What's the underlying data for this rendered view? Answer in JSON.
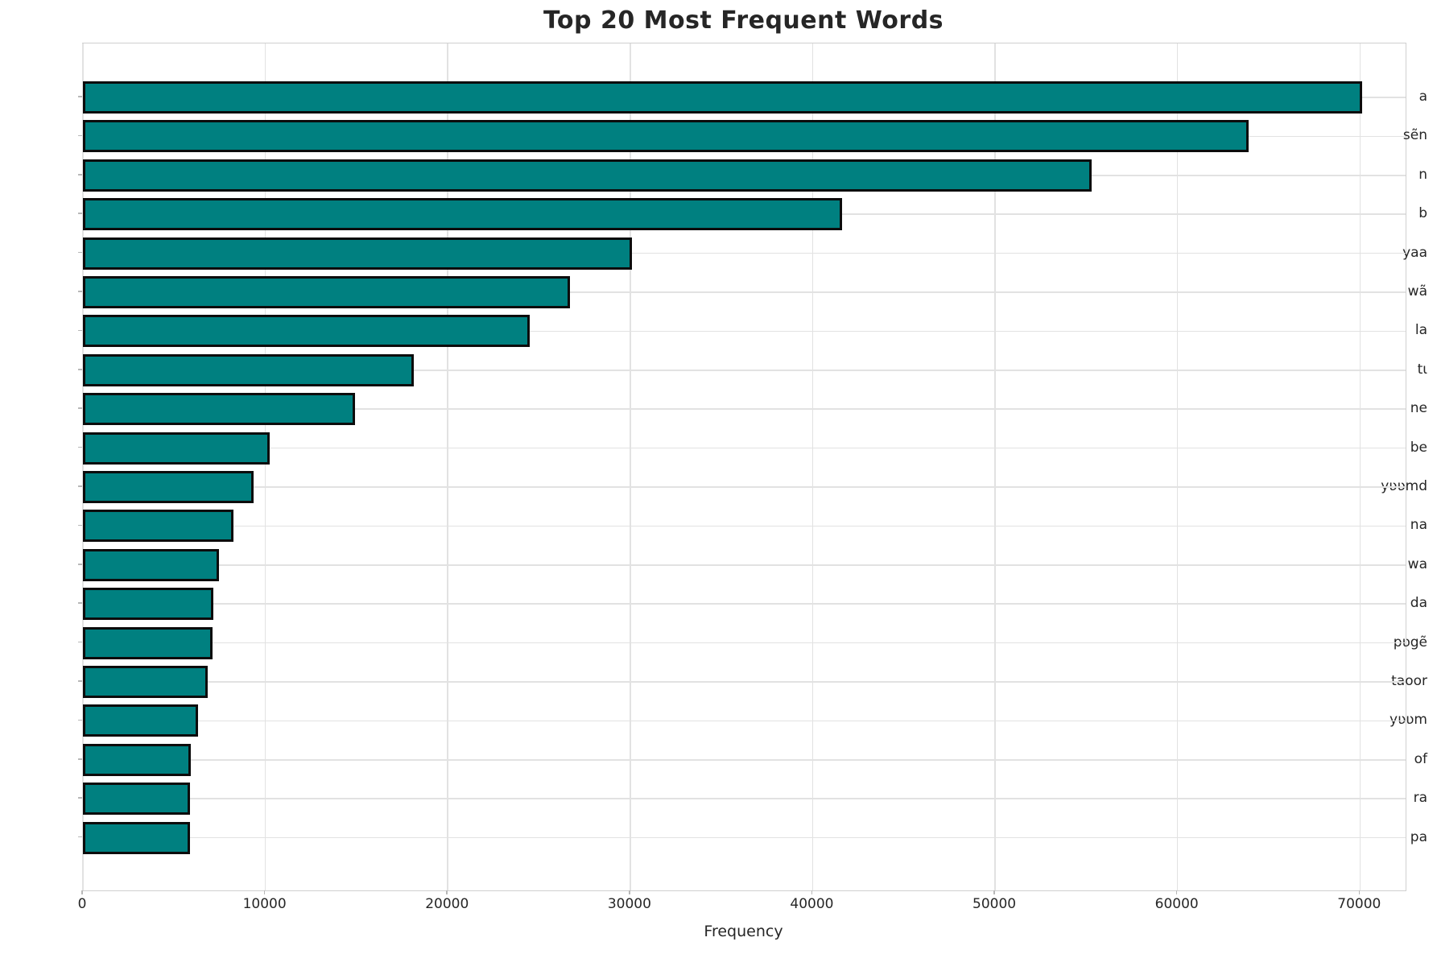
{
  "chart_data": {
    "type": "bar",
    "orientation": "horizontal",
    "title": "Top 20 Most Frequent Words",
    "xlabel": "Frequency",
    "ylabel": "",
    "categories": [
      "a",
      "sẽn",
      "n",
      "b",
      "yaa",
      "wã",
      "la",
      "tɩ",
      "ne",
      "be",
      "yʋʋmd",
      "na",
      "wa",
      "da",
      "pʋgẽ",
      "taoor",
      "yʋʋm",
      "of",
      "ra",
      "pa"
    ],
    "values": [
      70100,
      63900,
      55300,
      41600,
      30100,
      26700,
      24500,
      18150,
      14900,
      10250,
      9350,
      8250,
      7450,
      7150,
      7100,
      6850,
      6320,
      5900,
      5850,
      5860
    ],
    "xlim": [
      0,
      72500
    ],
    "xticks": [
      0,
      10000,
      20000,
      30000,
      40000,
      50000,
      60000,
      70000
    ],
    "grid": true,
    "legend": false,
    "bar_color": "#008080",
    "bar_edge_color": "#0c0c0c",
    "gridline_color": "#e2e2e2",
    "text_color": "#262626",
    "background_color": "#ffffff"
  }
}
